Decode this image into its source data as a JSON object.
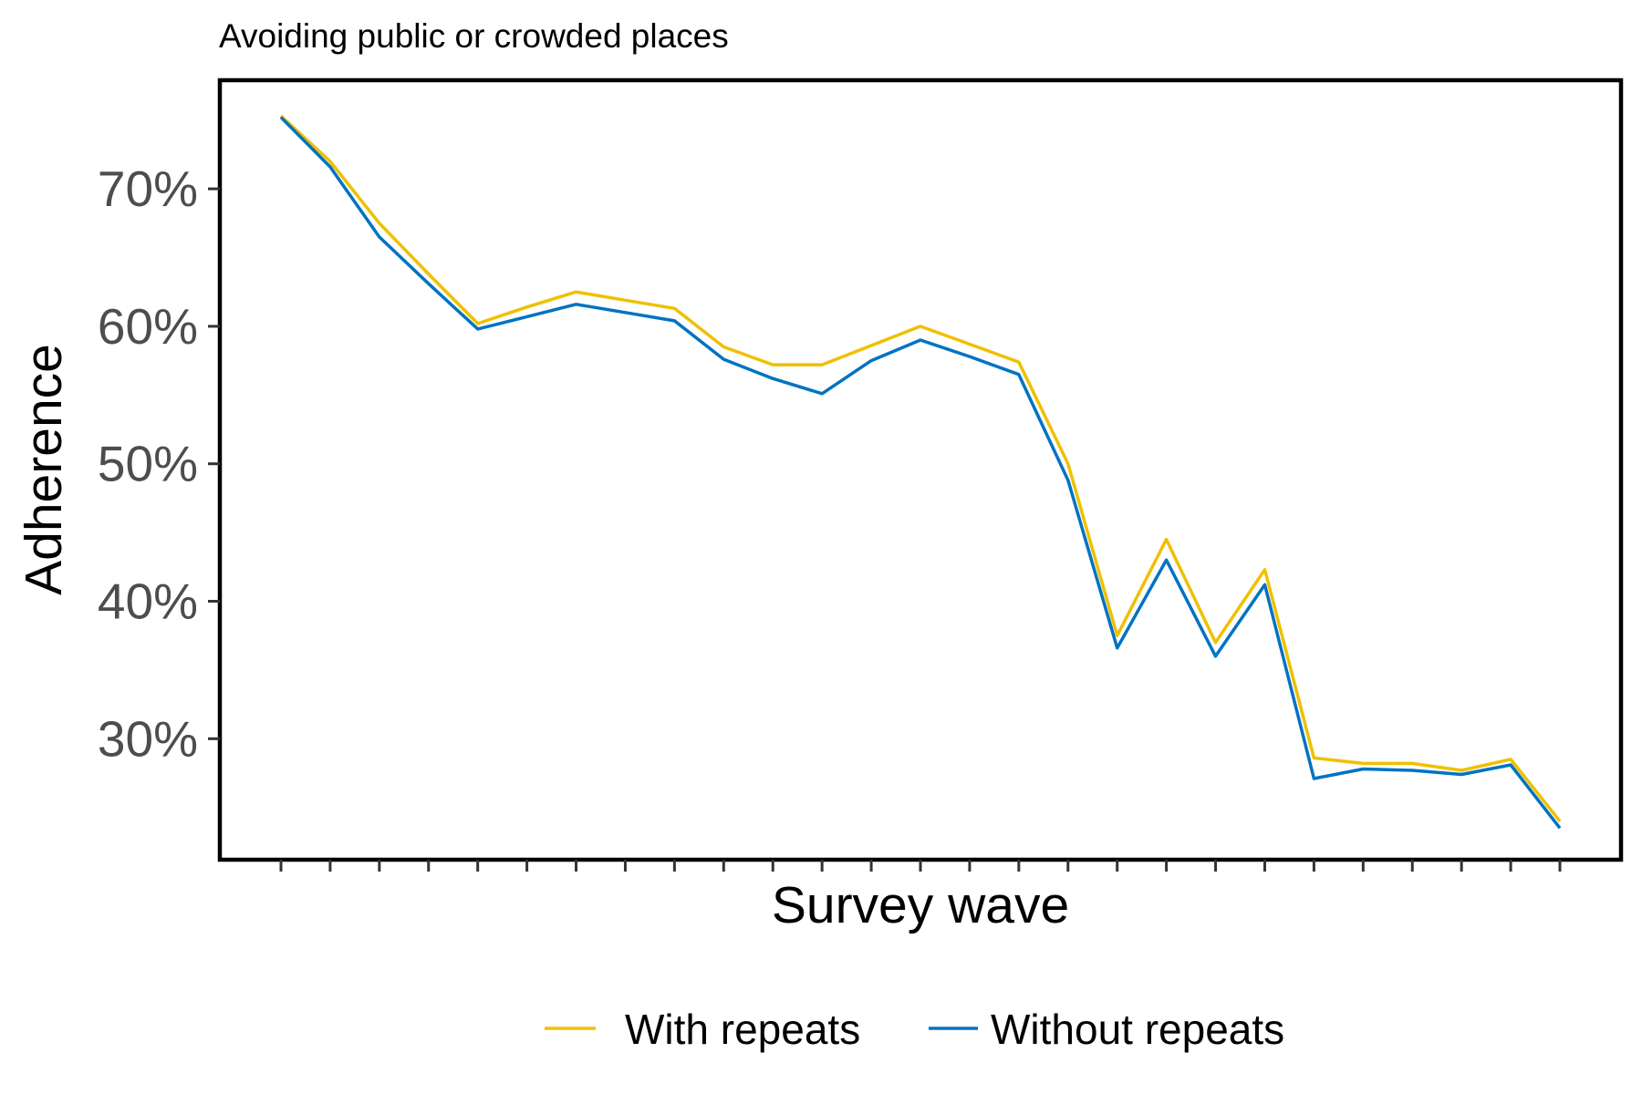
{
  "chart_data": {
    "type": "line",
    "subtitle": "Avoiding public or crowded places",
    "xlabel": "Survey wave",
    "ylabel": "Adherence",
    "x": [
      1,
      2,
      3,
      4,
      5,
      6,
      7,
      8,
      9,
      10,
      11,
      12,
      13,
      14,
      15,
      16,
      17,
      18,
      19,
      20,
      21,
      22,
      23,
      24,
      25,
      26,
      27
    ],
    "ylim": [
      21.2,
      77.9
    ],
    "yticks": [
      30,
      40,
      50,
      60,
      70
    ],
    "ytick_labels": [
      "30%",
      "40%",
      "50%",
      "60%",
      "70%"
    ],
    "grid": false,
    "legend_position": "bottom",
    "series": [
      {
        "name": "With repeats",
        "color": "#EFC000",
        "values": [
          75.3,
          72.0,
          67.5,
          63.8,
          60.2,
          61.4,
          62.5,
          61.9,
          61.3,
          58.5,
          57.2,
          57.2,
          58.6,
          60.0,
          58.7,
          57.4,
          50.0,
          37.5,
          44.5,
          37.0,
          42.3,
          28.6,
          28.2,
          28.2,
          27.7,
          28.5,
          24.0
        ]
      },
      {
        "name": "Without repeats",
        "color": "#0073C2",
        "values": [
          75.2,
          71.6,
          66.5,
          63.1,
          59.8,
          60.7,
          61.6,
          61.0,
          60.4,
          57.6,
          56.2,
          55.1,
          57.5,
          59.0,
          57.8,
          56.5,
          48.8,
          36.6,
          43.0,
          36.0,
          41.2,
          27.1,
          27.8,
          27.7,
          27.4,
          28.1,
          23.5
        ]
      }
    ]
  }
}
